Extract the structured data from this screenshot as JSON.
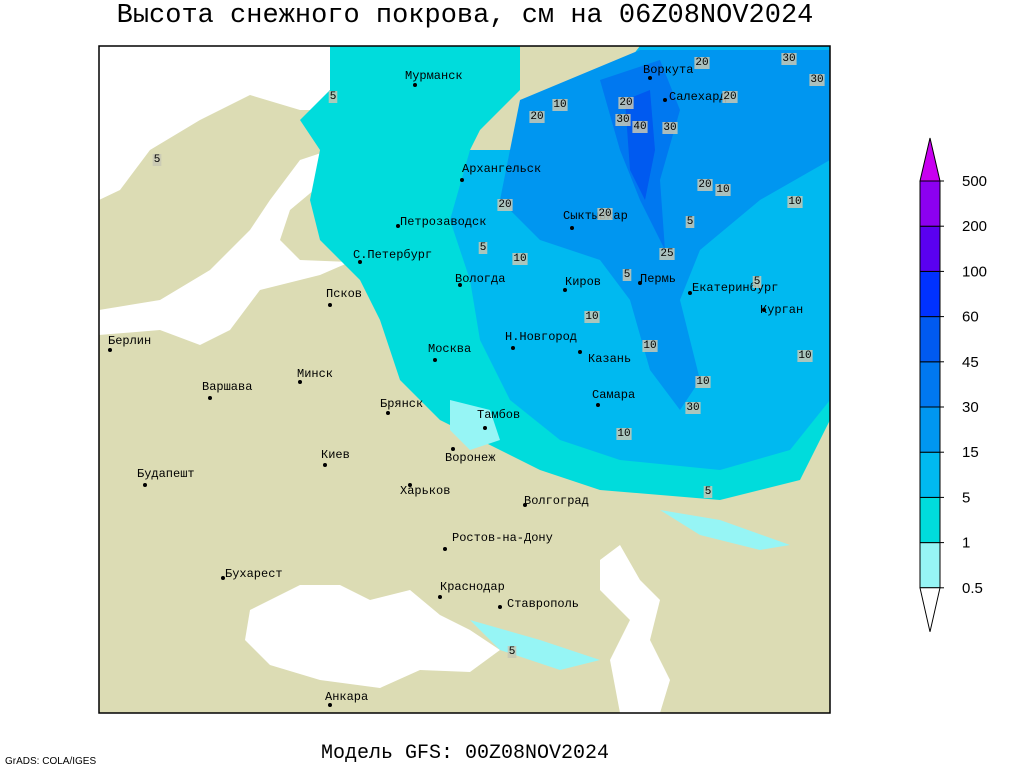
{
  "title": "Высота снежного покрова, см на 06Z08NOV2024",
  "footer": "Модель GFS: 00Z08NOV2024",
  "credit": "GrADS: COLA/IGES",
  "legend": {
    "levels": [
      0.5,
      1,
      5,
      15,
      30,
      45,
      60,
      100,
      200,
      500
    ],
    "colors": [
      "#ffffff",
      "#96f5f5",
      "#00dcdc",
      "#00b9f0",
      "#0096f0",
      "#0078f0",
      "#005af0",
      "#0032ff",
      "#5a00f0",
      "#8c00f0",
      "#c800f0"
    ]
  },
  "cities": [
    "Мурманск",
    "Архангельск",
    "Воркута",
    "Салехард",
    "Петрозаводск",
    "Сыктывкар",
    "С.Петербург",
    "Вологда",
    "Киров",
    "Пермь",
    "Екатеринбург",
    "Курган",
    "Псков",
    "Берлин",
    "Москва",
    "Н.Новгород",
    "Казань",
    "Минск",
    "Варшава",
    "Брянск",
    "Самара",
    "Тамбов",
    "Воронеж",
    "Киев",
    "Будапешт",
    "Харьков",
    "Волгоград",
    "Ростов-на-Дону",
    "Бухарест",
    "Краснодар",
    "Ставрополь",
    "Анкара"
  ],
  "contour_labels": [
    20,
    30,
    30,
    20,
    10,
    20,
    30,
    40,
    30,
    20,
    5,
    5,
    20,
    10,
    20,
    10,
    20,
    5,
    5,
    10,
    25,
    5,
    5,
    10,
    10,
    10,
    10,
    30,
    10,
    5,
    5
  ]
}
